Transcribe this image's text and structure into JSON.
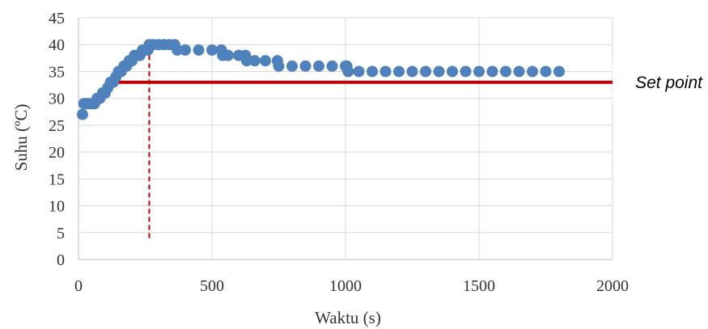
{
  "chart_data": {
    "type": "scatter",
    "xlabel": "Waktu (s)",
    "ylabel": "Suhu (ºC)",
    "xlim": [
      0,
      2000
    ],
    "ylim": [
      0,
      45
    ],
    "xticks": [
      0,
      500,
      1000,
      1500,
      2000
    ],
    "yticks": [
      0,
      5,
      10,
      15,
      20,
      25,
      30,
      35,
      40,
      45
    ],
    "grid": true,
    "series": [
      {
        "color": "#4f81bd",
        "points": [
          [
            15,
            27
          ],
          [
            20,
            29
          ],
          [
            30,
            29
          ],
          [
            40,
            29
          ],
          [
            50,
            29
          ],
          [
            60,
            29
          ],
          [
            70,
            30
          ],
          [
            80,
            30
          ],
          [
            90,
            31
          ],
          [
            100,
            31
          ],
          [
            110,
            32
          ],
          [
            120,
            33
          ],
          [
            130,
            33
          ],
          [
            140,
            34
          ],
          [
            150,
            35
          ],
          [
            160,
            35
          ],
          [
            170,
            36
          ],
          [
            180,
            36
          ],
          [
            190,
            37
          ],
          [
            200,
            37
          ],
          [
            210,
            38
          ],
          [
            220,
            38
          ],
          [
            230,
            38
          ],
          [
            240,
            39
          ],
          [
            250,
            39
          ],
          [
            260,
            39
          ],
          [
            265,
            40
          ],
          [
            280,
            40
          ],
          [
            300,
            40
          ],
          [
            320,
            40
          ],
          [
            340,
            40
          ],
          [
            360,
            40
          ],
          [
            370,
            39
          ],
          [
            400,
            39
          ],
          [
            450,
            39
          ],
          [
            500,
            39
          ],
          [
            535,
            39
          ],
          [
            540,
            38
          ],
          [
            560,
            38
          ],
          [
            600,
            38
          ],
          [
            625,
            38
          ],
          [
            630,
            37
          ],
          [
            660,
            37
          ],
          [
            700,
            37
          ],
          [
            745,
            37
          ],
          [
            750,
            36
          ],
          [
            800,
            36
          ],
          [
            850,
            36
          ],
          [
            900,
            36
          ],
          [
            950,
            36
          ],
          [
            1000,
            36
          ],
          [
            1005,
            36
          ],
          [
            1010,
            35
          ],
          [
            1050,
            35
          ],
          [
            1100,
            35
          ],
          [
            1150,
            35
          ],
          [
            1200,
            35
          ],
          [
            1250,
            35
          ],
          [
            1300,
            35
          ],
          [
            1350,
            35
          ],
          [
            1400,
            35
          ],
          [
            1450,
            35
          ],
          [
            1500,
            35
          ],
          [
            1550,
            35
          ],
          [
            1600,
            35
          ],
          [
            1650,
            35
          ],
          [
            1700,
            35
          ],
          [
            1750,
            35
          ],
          [
            1800,
            35
          ]
        ]
      }
    ],
    "set_point": {
      "label": "Set point",
      "value": 33,
      "x_start": 115,
      "color": "#c00000"
    },
    "marker_line": {
      "x": 265,
      "y_from": 4,
      "y_to": 40,
      "color": "#c00000",
      "style": "dashed"
    }
  }
}
